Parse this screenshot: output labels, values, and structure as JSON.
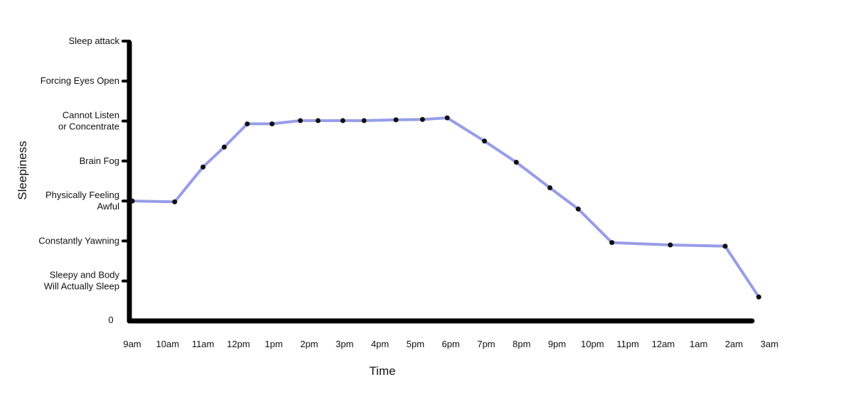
{
  "chart_data": {
    "type": "line",
    "title": "",
    "xlabel": "Time",
    "ylabel": "Sleepiness",
    "zero_label": "0",
    "y_levels": [
      {
        "value": 1,
        "lines": [
          "Sleepy and Body",
          "Will Actually Sleep"
        ]
      },
      {
        "value": 2,
        "lines": [
          "Constantly Yawning"
        ]
      },
      {
        "value": 3,
        "lines": [
          "Physically Feeling",
          "Awful"
        ]
      },
      {
        "value": 4,
        "lines": [
          "Brain Fog"
        ]
      },
      {
        "value": 5,
        "lines": [
          "Cannot Listen",
          "or Concentrate"
        ]
      },
      {
        "value": 6,
        "lines": [
          "Forcing Eyes Open"
        ]
      },
      {
        "value": 7,
        "lines": [
          "Sleep attack"
        ]
      }
    ],
    "ylim": [
      0,
      7
    ],
    "x_ticks": [
      "9am",
      "10am",
      "11am",
      "12pm",
      "1pm",
      "2pm",
      "3pm",
      "4pm",
      "5pm",
      "6pm",
      "7pm",
      "8pm",
      "9pm",
      "10pm",
      "11pm",
      "12am",
      "1am",
      "2am",
      "3am"
    ],
    "series": [
      {
        "color": "#8c92e6",
        "marker_color": "#111111",
        "points": [
          {
            "x": 0,
            "y": 3.0
          },
          {
            "x": 1.2,
            "y": 2.98
          },
          {
            "x": 2.0,
            "y": 3.85
          },
          {
            "x": 2.6,
            "y": 4.35
          },
          {
            "x": 3.25,
            "y": 4.93
          },
          {
            "x": 3.95,
            "y": 4.93
          },
          {
            "x": 4.75,
            "y": 5.01
          },
          {
            "x": 5.25,
            "y": 5.01
          },
          {
            "x": 5.95,
            "y": 5.01
          },
          {
            "x": 6.55,
            "y": 5.01
          },
          {
            "x": 7.45,
            "y": 5.03
          },
          {
            "x": 8.2,
            "y": 5.04
          },
          {
            "x": 8.9,
            "y": 5.08
          },
          {
            "x": 9.95,
            "y": 4.5
          },
          {
            "x": 10.85,
            "y": 3.97
          },
          {
            "x": 11.8,
            "y": 3.33
          },
          {
            "x": 12.6,
            "y": 2.8
          },
          {
            "x": 13.55,
            "y": 1.96
          },
          {
            "x": 15.2,
            "y": 1.9
          },
          {
            "x": 16.75,
            "y": 1.87
          },
          {
            "x": 17.7,
            "y": 0.6
          }
        ]
      }
    ]
  }
}
